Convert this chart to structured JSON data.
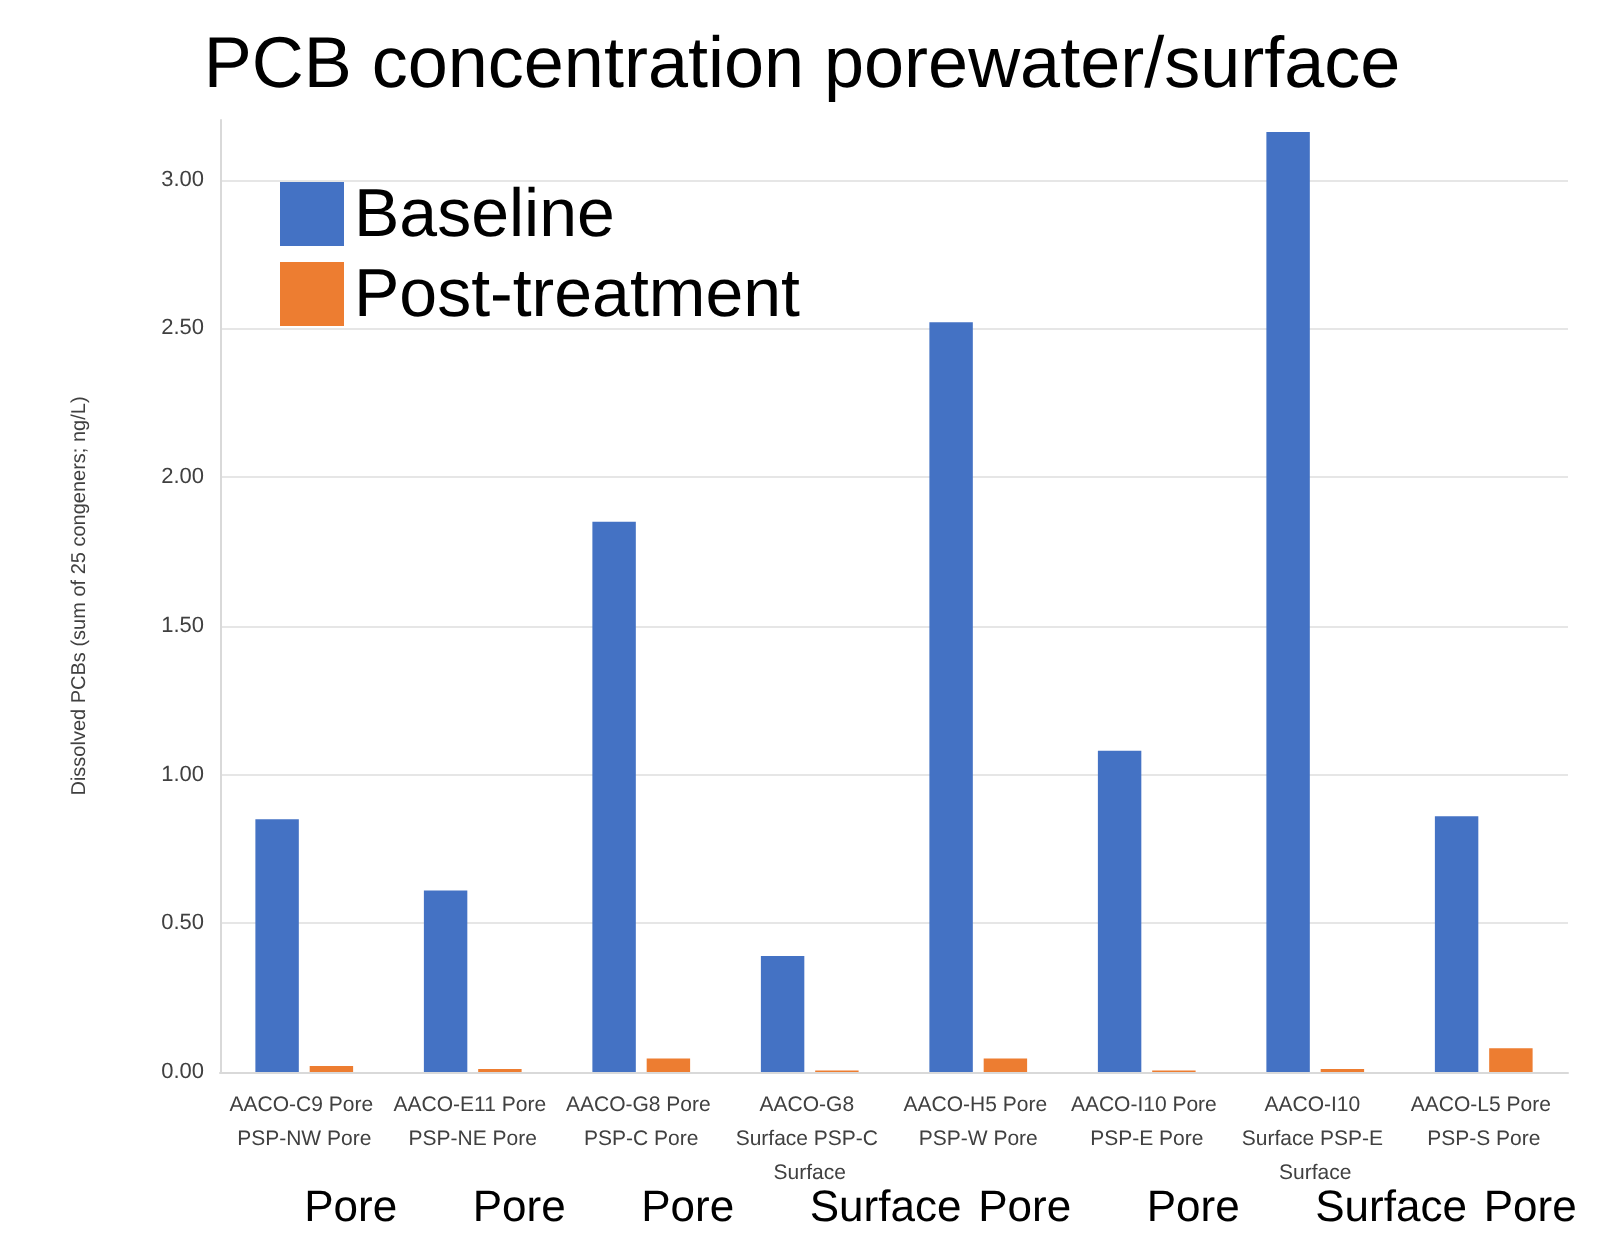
{
  "chart_data": {
    "type": "bar",
    "title": "PCB concentration porewater/surface",
    "ylabel": "Dissolved PCBs (sum of 25 congeners; ng/L)",
    "categories": [
      "AACO-C9 Pore PSP-NW Pore",
      "AACO-E11 Pore PSP-NE Pore",
      "AACO-G8 Pore PSP-C Pore",
      "AACO-G8 Surface PSP-C Surface",
      "AACO-H5 Pore PSP-W Pore",
      "AACO-I10 Pore PSP-E Pore",
      "AACO-I10 Surface PSP-E Surface",
      "AACO-L5 Pore PSP-S Pore"
    ],
    "series": [
      {
        "name": "Baseline",
        "color": "#4472c4",
        "values": [
          0.85,
          0.61,
          1.85,
          0.39,
          2.52,
          1.08,
          3.16,
          0.86
        ]
      },
      {
        "name": "Post-treatment",
        "color": "#ed7d31",
        "values": [
          0.02,
          0.01,
          0.045,
          0.005,
          0.045,
          0.005,
          0.01,
          0.08
        ]
      }
    ],
    "ylim": [
      0,
      3.2
    ],
    "yticks": [
      {
        "value": 0,
        "label": "0.00"
      },
      {
        "value": 0.5,
        "label": "0.50"
      },
      {
        "value": 1,
        "label": "1.00"
      },
      {
        "value": 1.5,
        "label": "1.50"
      },
      {
        "value": 2,
        "label": "2.00"
      },
      {
        "value": 2.5,
        "label": "2.50"
      },
      {
        "value": 3,
        "label": "3.00"
      }
    ],
    "grid": "y",
    "legend": "top left",
    "annotations": [
      "Pore",
      "Pore",
      "Pore",
      "Surface",
      "Pore",
      "Pore",
      "Surface",
      "Pore"
    ]
  }
}
